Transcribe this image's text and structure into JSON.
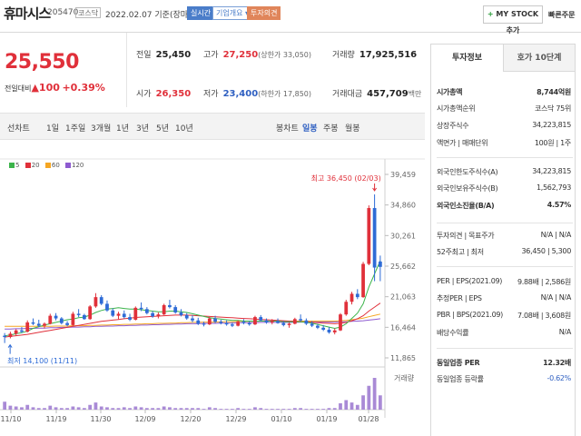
{
  "header": {
    "name": "휴마시스",
    "code": "205470",
    "market": "코스닥",
    "date": "2022.02.07 기준(장마감)",
    "btn_realtime": "실시간",
    "btn_company": "기업개요 ▾",
    "btn_invest": "투자의견",
    "btn_mystock_plus": "+",
    "btn_mystock": "MY STOCK 추가",
    "btn_quick": "빠른주문"
  },
  "price": {
    "current": "25,550",
    "change_label": "전일대비",
    "change_arrow": "▲",
    "change_value": "100",
    "change_pct": "+0.39%"
  },
  "stats": {
    "prev_label": "전일",
    "prev_value": "25,450",
    "high_label": "고가",
    "high_value": "27,250",
    "upper_limit": "(상한가 33,050)",
    "volume_label": "거래량",
    "volume_value": "17,925,516",
    "open_label": "시가",
    "open_value": "26,350",
    "low_label": "저가",
    "low_value": "23,400",
    "lower_limit": "(하한가 17,850)",
    "amount_label": "거래대금",
    "amount_value": "457,709",
    "amount_unit": "백만"
  },
  "period_tabs": [
    "선차트",
    "1일",
    "1주일",
    "3개월",
    "1년",
    "3년",
    "5년",
    "10년"
  ],
  "candle_tabs": [
    "봉차트",
    "일봉",
    "주봉",
    "월봉"
  ],
  "chart_legend": [
    {
      "label": "5",
      "color": "#3cb44b"
    },
    {
      "label": "20",
      "color": "#e0303a"
    },
    {
      "label": "60",
      "color": "#f5a623"
    },
    {
      "label": "120",
      "color": "#8e5bd0"
    }
  ],
  "chart_data": {
    "type": "candlestick",
    "x_labels": [
      "11/10",
      "11/19",
      "11/30",
      "12/09",
      "12/20",
      "12/29",
      "01/10",
      "01/19",
      "01/28"
    ],
    "y_ticks": [
      "39,459",
      "34,860",
      "30,261",
      "25,662",
      "21,063",
      "16,464",
      "11,865"
    ],
    "ylim": [
      11865,
      39459
    ],
    "high_annotation": "최고 36,450 (02/03)",
    "low_annotation": "최저 14,100 (11/11)",
    "volume_label": "거래량",
    "candles": [
      [
        15200,
        15600,
        14100,
        15000
      ],
      [
        15000,
        15800,
        14800,
        15500
      ],
      [
        15500,
        16200,
        15200,
        16000
      ],
      [
        16000,
        16500,
        15600,
        15800
      ],
      [
        15800,
        17500,
        15700,
        17200
      ],
      [
        17200,
        17800,
        16800,
        17000
      ],
      [
        17000,
        17600,
        16500,
        16700
      ],
      [
        16700,
        17200,
        16300,
        17000
      ],
      [
        17000,
        18500,
        16900,
        18200
      ],
      [
        18200,
        18600,
        17500,
        17800
      ],
      [
        17800,
        18000,
        16900,
        17100
      ],
      [
        17100,
        17400,
        16600,
        16800
      ],
      [
        16800,
        18800,
        16700,
        18500
      ],
      [
        18500,
        19200,
        18000,
        18300
      ],
      [
        18300,
        18500,
        17600,
        17700
      ],
      [
        17700,
        19800,
        17600,
        19600
      ],
      [
        19600,
        21600,
        19400,
        21000
      ],
      [
        21000,
        21300,
        19800,
        20000
      ],
      [
        20000,
        20500,
        18800,
        19000
      ],
      [
        19000,
        19300,
        18000,
        18200
      ],
      [
        18200,
        18800,
        17700,
        18500
      ],
      [
        18500,
        19000,
        17800,
        18000
      ],
      [
        18000,
        18500,
        17400,
        17600
      ],
      [
        17600,
        19600,
        17500,
        19400
      ],
      [
        19400,
        20200,
        18900,
        19200
      ],
      [
        19200,
        19500,
        18400,
        18600
      ],
      [
        18600,
        18900,
        17900,
        18100
      ],
      [
        18100,
        18700,
        17800,
        18400
      ],
      [
        18400,
        20000,
        18300,
        19800
      ],
      [
        19800,
        20600,
        19300,
        19500
      ],
      [
        19500,
        19800,
        18500,
        18700
      ],
      [
        18700,
        19200,
        18100,
        18300
      ],
      [
        18300,
        18600,
        17600,
        17800
      ],
      [
        17800,
        18300,
        17200,
        17500
      ],
      [
        17500,
        17900,
        16800,
        17000
      ],
      [
        17000,
        17300,
        16600,
        16900
      ],
      [
        16900,
        18000,
        16800,
        17800
      ],
      [
        17800,
        18200,
        17100,
        17300
      ],
      [
        17300,
        17600,
        16900,
        17100
      ],
      [
        17100,
        17500,
        16700,
        16900
      ],
      [
        16900,
        17200,
        16500,
        16700
      ],
      [
        16700,
        17500,
        16600,
        17300
      ],
      [
        17300,
        17700,
        16900,
        17100
      ],
      [
        17100,
        17400,
        16700,
        16900
      ],
      [
        16900,
        18200,
        16800,
        18000
      ],
      [
        18000,
        18300,
        17400,
        17500
      ],
      [
        17500,
        17800,
        17000,
        17200
      ],
      [
        17200,
        17700,
        16900,
        17400
      ],
      [
        17400,
        17800,
        17000,
        17100
      ],
      [
        17100,
        17400,
        16600,
        16800
      ],
      [
        16800,
        17200,
        16400,
        17000
      ],
      [
        17000,
        17900,
        16900,
        17700
      ],
      [
        17700,
        18400,
        17300,
        17500
      ],
      [
        17500,
        17800,
        16800,
        17000
      ],
      [
        17000,
        17400,
        16500,
        16700
      ],
      [
        16700,
        17000,
        16200,
        16400
      ],
      [
        16400,
        16800,
        15900,
        16100
      ],
      [
        16100,
        16500,
        15500,
        15700
      ],
      [
        15700,
        16300,
        15400,
        16000
      ],
      [
        16000,
        18600,
        15900,
        18400
      ],
      [
        18400,
        20600,
        18200,
        20300
      ],
      [
        20300,
        21800,
        19900,
        21500
      ],
      [
        21500,
        22200,
        20700,
        21000
      ],
      [
        21000,
        26300,
        20900,
        26000
      ],
      [
        26000,
        34800,
        25800,
        34400
      ],
      [
        34400,
        36450,
        23400,
        25450
      ],
      [
        26350,
        27250,
        23400,
        25550
      ]
    ],
    "ma5": [
      15200,
      15300,
      15500,
      15650,
      15900,
      16300,
      16550,
      16800,
      17000,
      17200,
      17400,
      17600,
      17700,
      17900,
      18000,
      18300,
      18700,
      19000,
      19200,
      19300,
      19400,
      19300,
      19200,
      19200,
      19100,
      19000,
      18900,
      18800,
      18800,
      18900,
      18900,
      18800,
      18700,
      18500,
      18300,
      18100,
      17900,
      17800,
      17700,
      17600,
      17500,
      17500,
      17400,
      17400,
      17400,
      17400,
      17400,
      17400,
      17400,
      17300,
      17300,
      17300,
      17300,
      17200,
      17100,
      16900,
      16700,
      16500,
      16300,
      16500,
      17000,
      17800,
      18600,
      20000,
      22500,
      24500,
      26500
    ],
    "ma20": [
      15000,
      15100,
      15200,
      15300,
      15400,
      15550,
      15700,
      15850,
      16000,
      16150,
      16300,
      16450,
      16600,
      16750,
      16900,
      17050,
      17200,
      17350,
      17450,
      17550,
      17650,
      17750,
      17850,
      17950,
      18000,
      18050,
      18100,
      18150,
      18200,
      18250,
      18300,
      18300,
      18300,
      18250,
      18200,
      18150,
      18100,
      18050,
      18000,
      17950,
      17900,
      17850,
      17800,
      17750,
      17700,
      17650,
      17600,
      17550,
      17500,
      17450,
      17400,
      17350,
      17300,
      17250,
      17200,
      17150,
      17100,
      17050,
      17000,
      17050,
      17200,
      17450,
      17750,
      18200,
      18900,
      19500,
      20100
    ],
    "ma60": [
      16600,
      16600,
      16600,
      16600,
      16600,
      16600,
      16600,
      16600,
      16600,
      16650,
      16650,
      16650,
      16700,
      16700,
      16700,
      16750,
      16750,
      16800,
      16800,
      16850,
      16850,
      16900,
      16900,
      16950,
      16950,
      17000,
      17000,
      17050,
      17050,
      17100,
      17100,
      17150,
      17150,
      17200,
      17200,
      17250,
      17250,
      17250,
      17300,
      17300,
      17300,
      17350,
      17350,
      17350,
      17350,
      17400,
      17400,
      17400,
      17400,
      17400,
      17400,
      17400,
      17400,
      17400,
      17400,
      17400,
      17400,
      17400,
      17400,
      17450,
      17500,
      17600,
      17700,
      17850,
      18050,
      18250,
      18450
    ],
    "ma120": [
      16200,
      16200,
      16250,
      16250,
      16300,
      16300,
      16350,
      16350,
      16400,
      16400,
      16450,
      16450,
      16500,
      16500,
      16550,
      16550,
      16600,
      16600,
      16650,
      16650,
      16700,
      16700,
      16750,
      16750,
      16800,
      16800,
      16850,
      16850,
      16900,
      16900,
      16950,
      16950,
      17000,
      17000,
      17000,
      17050,
      17050,
      17050,
      17100,
      17100,
      17100,
      17150,
      17150,
      17150,
      17150,
      17200,
      17200,
      17200,
      17200,
      17200,
      17200,
      17200,
      17250,
      17250,
      17250,
      17250,
      17250,
      17250,
      17250,
      17300,
      17300,
      17350,
      17400,
      17450,
      17550,
      17650,
      17750
    ],
    "volume": [
      10,
      5,
      4,
      3,
      6,
      3,
      2,
      2,
      5,
      3,
      2,
      2,
      4,
      3,
      2,
      6,
      9,
      4,
      3,
      2,
      2,
      3,
      2,
      4,
      3,
      2,
      2,
      2,
      4,
      3,
      2,
      2,
      2,
      2,
      2,
      1,
      3,
      2,
      1,
      1,
      1,
      2,
      1,
      1,
      3,
      2,
      1,
      1,
      1,
      1,
      1,
      2,
      2,
      1,
      1,
      1,
      1,
      2,
      2,
      8,
      12,
      9,
      6,
      18,
      30,
      40,
      18
    ]
  },
  "right_panel": {
    "tab_active": "투자정보",
    "tab_other": "호가 10단계",
    "rows": [
      {
        "label": "시가총액",
        "value": "8,744억원",
        "bold": true
      },
      {
        "label": "시가총액순위",
        "value": "코스닥 75위"
      },
      {
        "label": "상장주식수",
        "value": "34,223,815"
      },
      {
        "label": "액면가 | 매매단위",
        "value": "100원 | 1주"
      },
      {
        "label": "외국인한도주식수(A)",
        "value": "34,223,815"
      },
      {
        "label": "외국인보유주식수(B)",
        "value": "1,562,793"
      },
      {
        "label": "외국인소진율(B/A)",
        "value": "4.57%",
        "bold": true
      },
      {
        "label": "투자의견 | 목표주가",
        "value": "N/A | N/A"
      },
      {
        "label": "52주최고 | 최저",
        "value": "36,450 | 5,300"
      },
      {
        "label": "PER | EPS(2021.09)",
        "value": "9.88배 | 2,586원"
      },
      {
        "label": "추정PER | EPS",
        "value": "N/A | N/A"
      },
      {
        "label": "PBR | BPS(2021.09)",
        "value": "7.08배 | 3,608원"
      },
      {
        "label": "배당수익률",
        "value": "N/A"
      },
      {
        "label": "동일업종 PER",
        "value": "12.32배",
        "bold": true
      },
      {
        "label": "동일업종 등락률",
        "value": "-0.62%",
        "blue": true
      }
    ]
  }
}
